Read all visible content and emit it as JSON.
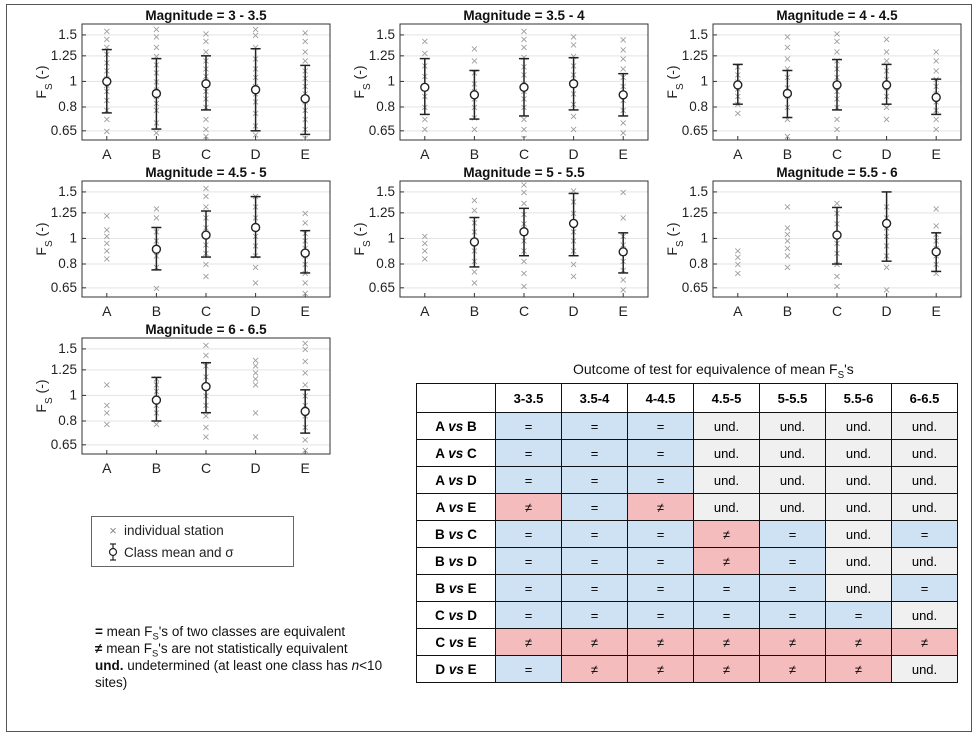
{
  "chart_data": [
    {
      "type": "scatter",
      "title": "Magnitude = 3 - 3.5",
      "ylabel": "F_S (-)",
      "categories": [
        "A",
        "B",
        "C",
        "D",
        "E"
      ],
      "yticks": [
        "0.65",
        "0.8",
        "1",
        "1.25",
        "1.5"
      ],
      "ylim": [
        0.6,
        1.65
      ],
      "scale": "log",
      "means": [
        1.0,
        0.9,
        0.98,
        0.93,
        0.86
      ],
      "lower": [
        0.76,
        0.66,
        0.78,
        0.65,
        0.63
      ],
      "upper": [
        1.32,
        1.22,
        1.25,
        1.33,
        1.15
      ],
      "stations": [
        [
          0.65,
          0.72,
          0.78,
          0.85,
          0.92,
          0.97,
          1.03,
          1.1,
          1.18,
          1.27,
          1.35,
          1.45,
          1.55
        ],
        [
          0.64,
          0.7,
          0.78,
          0.83,
          0.88,
          0.93,
          1.0,
          1.08,
          1.16,
          1.25,
          1.35,
          1.48,
          1.58
        ],
        [
          0.62,
          0.66,
          0.72,
          0.8,
          0.86,
          0.92,
          0.98,
          1.05,
          1.12,
          1.2,
          1.3,
          1.42,
          1.52
        ],
        [
          0.63,
          0.68,
          0.76,
          0.84,
          0.9,
          0.96,
          1.04,
          1.12,
          1.22,
          1.35,
          1.5,
          1.58
        ],
        [
          0.61,
          0.66,
          0.72,
          0.78,
          0.84,
          0.9,
          0.96,
          1.03,
          1.1,
          1.2,
          1.3,
          1.42,
          1.53
        ]
      ]
    },
    {
      "type": "scatter",
      "title": "Magnitude = 3.5 - 4",
      "ylabel": "F_S (-)",
      "categories": [
        "A",
        "B",
        "C",
        "D",
        "E"
      ],
      "yticks": [
        "0.65",
        "0.8",
        "1",
        "1.25",
        "1.5"
      ],
      "ylim": [
        0.6,
        1.65
      ],
      "scale": "log",
      "means": [
        0.95,
        0.89,
        0.95,
        0.98,
        0.89
      ],
      "lower": [
        0.75,
        0.72,
        0.74,
        0.78,
        0.74
      ],
      "upper": [
        1.22,
        1.1,
        1.22,
        1.23,
        1.07
      ],
      "stations": [
        [
          0.66,
          0.72,
          0.8,
          0.88,
          0.95,
          1.05,
          1.15,
          1.28,
          1.42
        ],
        [
          0.66,
          0.73,
          0.8,
          0.86,
          0.92,
          0.98,
          1.08,
          1.2,
          1.33
        ],
        [
          0.61,
          0.66,
          0.72,
          0.8,
          0.86,
          0.92,
          0.98,
          1.06,
          1.14,
          1.24,
          1.35,
          1.45,
          1.55
        ],
        [
          0.66,
          0.74,
          0.82,
          0.9,
          0.98,
          1.06,
          1.15,
          1.25,
          1.38,
          1.48
        ],
        [
          0.64,
          0.7,
          0.78,
          0.85,
          0.9,
          0.96,
          1.04,
          1.12,
          1.22,
          1.32,
          1.44
        ]
      ]
    },
    {
      "type": "scatter",
      "title": "Magnitude = 4 - 4.5",
      "ylabel": "F_S (-)",
      "categories": [
        "A",
        "B",
        "C",
        "D",
        "E"
      ],
      "yticks": [
        "0.65",
        "0.8",
        "1",
        "1.25",
        "1.5"
      ],
      "ylim": [
        0.6,
        1.65
      ],
      "scale": "log",
      "means": [
        0.97,
        0.9,
        0.97,
        0.97,
        0.87
      ],
      "lower": [
        0.82,
        0.73,
        0.78,
        0.82,
        0.75
      ],
      "upper": [
        1.16,
        1.1,
        1.21,
        1.16,
        1.02
      ],
      "stations": [
        [
          0.76,
          0.82,
          0.88,
          0.94,
          1.0,
          1.06,
          1.14
        ],
        [
          0.62,
          0.72,
          0.8,
          0.88,
          0.95,
          1.04,
          1.12,
          1.22,
          1.35,
          1.48
        ],
        [
          0.66,
          0.72,
          0.8,
          0.86,
          0.92,
          0.98,
          1.04,
          1.12,
          1.2,
          1.3,
          1.42,
          1.52
        ],
        [
          0.72,
          0.8,
          0.88,
          0.95,
          1.02,
          1.1,
          1.2,
          1.3,
          1.45
        ],
        [
          0.66,
          0.72,
          0.78,
          0.84,
          0.9,
          0.96,
          1.02,
          1.1,
          1.2,
          1.3
        ]
      ]
    },
    {
      "type": "scatter",
      "title": "Magnitude = 4.5 - 5",
      "ylabel": "F_S (-)",
      "categories": [
        "A",
        "B",
        "C",
        "D",
        "E"
      ],
      "yticks": [
        "0.65",
        "0.8",
        "1",
        "1.25",
        "1.5"
      ],
      "ylim": [
        0.6,
        1.65
      ],
      "scale": "log",
      "means": [
        null,
        0.91,
        1.03,
        1.1,
        0.88
      ],
      "lower": [
        null,
        0.76,
        0.85,
        0.85,
        0.74
      ],
      "upper": [
        null,
        1.1,
        1.27,
        1.44,
        1.07
      ],
      "stations": [
        [
          0.84,
          0.9,
          0.96,
          1.02,
          1.08,
          1.22
        ],
        [
          0.65,
          0.78,
          0.86,
          0.92,
          0.98,
          1.06,
          1.2,
          1.3
        ],
        [
          0.72,
          0.8,
          0.88,
          0.95,
          1.02,
          1.1,
          1.2,
          1.32,
          1.45,
          1.55
        ],
        [
          0.68,
          0.78,
          0.86,
          0.94,
          1.02,
          1.1,
          1.2,
          1.32,
          1.45
        ],
        [
          0.62,
          0.68,
          0.74,
          0.8,
          0.86,
          0.92,
          0.98,
          1.05,
          1.15,
          1.25
        ]
      ]
    },
    {
      "type": "scatter",
      "title": "Magnitude = 5 - 5.5",
      "ylabel": "F_S (-)",
      "categories": [
        "A",
        "B",
        "C",
        "D",
        "E"
      ],
      "yticks": [
        "0.65",
        "0.8",
        "1",
        "1.25",
        "1.5"
      ],
      "ylim": [
        0.6,
        1.65
      ],
      "scale": "log",
      "means": [
        null,
        0.97,
        1.06,
        1.14,
        0.89
      ],
      "lower": [
        null,
        0.78,
        0.86,
        0.86,
        0.74
      ],
      "upper": [
        null,
        1.2,
        1.3,
        1.48,
        1.05
      ],
      "stations": [
        [
          0.84,
          0.9,
          0.96,
          1.02
        ],
        [
          0.68,
          0.75,
          0.82,
          0.9,
          0.98,
          1.06,
          1.15,
          1.28,
          1.4
        ],
        [
          0.66,
          0.74,
          0.82,
          0.9,
          0.98,
          1.06,
          1.14,
          1.24,
          1.36,
          1.5,
          1.6
        ],
        [
          0.72,
          0.8,
          0.9,
          0.98,
          1.06,
          1.15,
          1.25,
          1.38,
          1.52
        ],
        [
          0.64,
          0.7,
          0.76,
          0.82,
          0.88,
          0.95,
          1.02,
          1.2,
          1.5
        ]
      ]
    },
    {
      "type": "scatter",
      "title": "Magnitude = 5.5 - 6",
      "ylabel": "F_S (-)",
      "categories": [
        "A",
        "B",
        "C",
        "D",
        "E"
      ],
      "yticks": [
        "0.65",
        "0.8",
        "1",
        "1.25",
        "1.5"
      ],
      "ylim": [
        0.6,
        1.65
      ],
      "scale": "log",
      "means": [
        null,
        null,
        1.03,
        1.14,
        0.89
      ],
      "lower": [
        null,
        null,
        0.8,
        0.82,
        0.75
      ],
      "upper": [
        null,
        null,
        1.31,
        1.5,
        1.05
      ],
      "stations": [
        [
          0.74,
          0.8,
          0.85,
          0.9
        ],
        [
          0.78,
          0.86,
          0.92,
          0.98,
          1.04,
          1.1,
          1.32
        ],
        [
          0.66,
          0.72,
          0.8,
          0.88,
          0.96,
          1.04,
          1.14,
          1.25,
          1.36
        ],
        [
          0.64,
          0.78,
          0.86,
          0.94,
          1.02,
          1.1,
          1.2,
          1.32
        ],
        [
          0.74,
          0.8,
          0.86,
          0.92,
          0.98,
          1.04,
          1.12,
          1.3
        ]
      ]
    },
    {
      "type": "scatter",
      "title": "Magnitude = 6 - 6.5",
      "ylabel": "F_S (-)",
      "categories": [
        "A",
        "B",
        "C",
        "D",
        "E"
      ],
      "yticks": [
        "0.65",
        "0.8",
        "1",
        "1.25",
        "1.5"
      ],
      "ylim": [
        0.6,
        1.65
      ],
      "scale": "log",
      "means": [
        null,
        0.96,
        1.08,
        null,
        0.87
      ],
      "lower": [
        null,
        0.8,
        0.86,
        null,
        0.72
      ],
      "upper": [
        null,
        1.17,
        1.33,
        null,
        1.05
      ],
      "stations": [
        [
          0.78,
          0.86,
          0.92,
          1.1
        ],
        [
          0.78,
          0.86,
          0.92,
          0.98,
          1.04,
          1.1,
          1.16
        ],
        [
          0.7,
          0.76,
          0.84,
          0.92,
          1.0,
          1.08,
          1.18,
          1.3,
          1.42,
          1.55
        ],
        [
          0.7,
          0.86,
          1.1,
          1.16,
          1.22,
          1.3,
          1.36
        ],
        [
          0.62,
          0.68,
          0.76,
          0.84,
          0.92,
          1.0,
          1.1,
          1.22,
          1.35,
          1.5,
          1.58
        ]
      ]
    },
    {
      "type": "table",
      "title": "Outcome of test for equivalence of mean F_S's",
      "columns": [
        "3-3.5",
        "3.5-4",
        "4-4.5",
        "4.5-5",
        "5-5.5",
        "5.5-6",
        "6-6.5"
      ],
      "rows": [
        {
          "label": "A vs B",
          "values": [
            "=",
            "=",
            "=",
            "und.",
            "und.",
            "und.",
            "und."
          ]
        },
        {
          "label": "A vs C",
          "values": [
            "=",
            "=",
            "=",
            "und.",
            "und.",
            "und.",
            "und."
          ]
        },
        {
          "label": "A vs D",
          "values": [
            "=",
            "=",
            "=",
            "und.",
            "und.",
            "und.",
            "und."
          ]
        },
        {
          "label": "A vs E",
          "values": [
            "≠",
            "=",
            "≠",
            "und.",
            "und.",
            "und.",
            "und."
          ]
        },
        {
          "label": "B vs C",
          "values": [
            "=",
            "=",
            "=",
            "≠",
            "=",
            "und.",
            "="
          ]
        },
        {
          "label": "B vs D",
          "values": [
            "=",
            "=",
            "=",
            "≠",
            "=",
            "und.",
            "und."
          ]
        },
        {
          "label": "B vs E",
          "values": [
            "=",
            "=",
            "=",
            "=",
            "=",
            "und.",
            "="
          ]
        },
        {
          "label": "C vs D",
          "values": [
            "=",
            "=",
            "=",
            "=",
            "=",
            "=",
            "und."
          ]
        },
        {
          "label": "C vs E",
          "values": [
            "≠",
            "≠",
            "≠",
            "≠",
            "≠",
            "≠",
            "≠"
          ]
        },
        {
          "label": "D vs E",
          "values": [
            "=",
            "≠",
            "≠",
            "≠",
            "≠",
            "≠",
            "und."
          ]
        }
      ]
    }
  ],
  "legend": {
    "station_label": "individual station",
    "mean_label": "Class mean and σ"
  },
  "notes": {
    "eq_sym": "=",
    "eq_text": "mean F_S's of two classes are equivalent",
    "ne_sym": "≠",
    "ne_text": "mean F_S's are not statistically equivalent",
    "und_sym": "und.",
    "und_text": "undetermined (at least one class has n<10 sites)"
  },
  "colors": {
    "equivalent": "#cfe2f3",
    "not_equivalent": "#f4bcbc",
    "undetermined": "#f0f0f0",
    "station_marker": "#9a9a9a"
  }
}
